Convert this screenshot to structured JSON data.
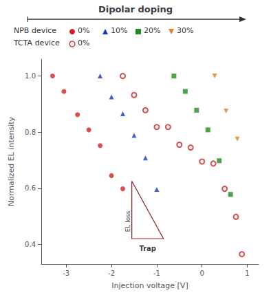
{
  "chart_data": {
    "type": "scatter",
    "title": "Dipolar doping",
    "xlabel": "Injection voltage [V]",
    "ylabel": "Normalized EL intensity",
    "xlim": [
      -3.55,
      1.25
    ],
    "ylim": [
      0.33,
      1.06
    ],
    "xticks": [
      -3,
      -2,
      -1,
      0,
      1
    ],
    "yticks": [
      0.4,
      0.6,
      0.8,
      {
        "value": 1.0,
        "label": "1.0"
      }
    ],
    "grid": false,
    "legend": "top",
    "series": [
      {
        "name": "0%",
        "group": "NPB device",
        "color": "#d42020",
        "marker": "circle",
        "x": [
          -3.3,
          -3.05,
          -2.75,
          -2.5,
          -2.25,
          -2.0,
          -1.75
        ],
        "values": [
          1.0,
          0.945,
          0.862,
          0.808,
          0.752,
          0.645,
          0.598
        ]
      },
      {
        "name": "10%",
        "group": "NPB device",
        "color": "#1a35c0",
        "marker": "triangle",
        "x": [
          -2.25,
          -2.0,
          -1.75,
          -1.5,
          -1.25,
          -1.0
        ],
        "values": [
          1.0,
          0.925,
          0.865,
          0.788,
          0.708,
          0.596
        ]
      },
      {
        "name": "20%",
        "group": "NPB device",
        "color": "#1f8c1f",
        "marker": "square",
        "x": [
          -0.62,
          -0.37,
          -0.12,
          0.13,
          0.38,
          0.63
        ],
        "values": [
          1.0,
          0.945,
          0.878,
          0.808,
          0.698,
          0.578
        ]
      },
      {
        "name": "30%",
        "group": "NPB device",
        "color": "#e08020",
        "marker": "triangle-down",
        "x": [
          0.28,
          0.53,
          0.78
        ],
        "values": [
          1.0,
          0.875,
          0.775
        ]
      },
      {
        "name": "0%",
        "group": "TCTA device",
        "color": "#d42020",
        "marker": "open circle",
        "x": [
          -1.75,
          -1.5,
          -1.25,
          -1.0,
          -0.75,
          -0.5,
          -0.25,
          0.0,
          0.25,
          0.5,
          0.75,
          0.88
        ],
        "values": [
          1.0,
          0.932,
          0.878,
          0.818,
          0.818,
          0.755,
          0.745,
          0.695,
          0.688,
          0.598,
          0.498,
          0.365
        ]
      }
    ],
    "annotations": [
      {
        "text": "EL loss",
        "x": -1.6,
        "y": 0.52,
        "path_x": [
          -1.55,
          -1.55,
          -0.85,
          -1.55
        ],
        "path_y": [
          0.625,
          0.42,
          0.42,
          0.625
        ],
        "color": "#8b1a1a"
      },
      {
        "text": "Trap",
        "x": -1.2,
        "y": 0.405
      }
    ]
  }
}
